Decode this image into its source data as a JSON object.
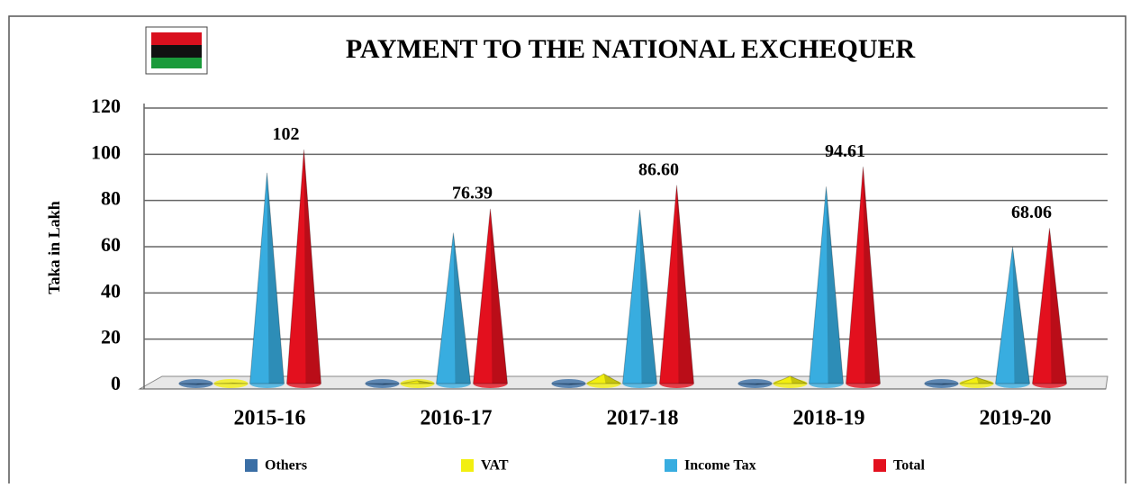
{
  "chart_data": {
    "type": "cone-bar",
    "title": "PAYMENT TO THE NATIONAL EXCHEQUER",
    "y_label": "Taka in Lakh",
    "categories": [
      "2015-16",
      "2016-17",
      "2017-18",
      "2018-19",
      "2019-20"
    ],
    "series": [
      {
        "name": "Others",
        "color": "#3a6ea5",
        "values": [
          0.3,
          0.3,
          0.3,
          0.3,
          0.3
        ]
      },
      {
        "name": "VAT",
        "color": "#f2ef10",
        "values": [
          1,
          2,
          5,
          4,
          3.5
        ]
      },
      {
        "name": "Income Tax",
        "color": "#38ade0",
        "values": [
          92,
          66,
          76,
          86,
          60
        ]
      },
      {
        "name": "Total",
        "color": "#e3101e",
        "values": [
          102,
          76.39,
          86.6,
          94.61,
          68.06
        ],
        "value_labels": [
          "102",
          "76.39",
          "86.60",
          "94.61",
          "68.06"
        ]
      }
    ],
    "ylim": [
      0,
      120
    ],
    "yticks": [
      0,
      20,
      40,
      60,
      80,
      100,
      120
    ],
    "grid": true
  }
}
